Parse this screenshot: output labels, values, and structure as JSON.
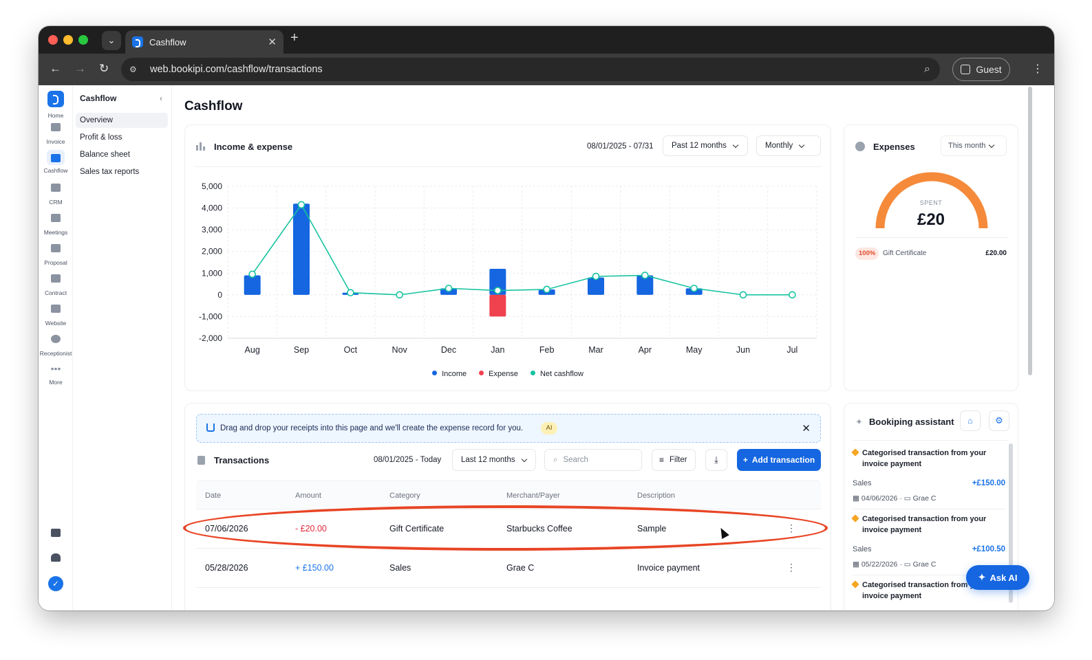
{
  "browser": {
    "tab_title": "Cashflow",
    "url": "web.bookipi.com/cashflow/transactions",
    "profile_label": "Guest"
  },
  "rail": {
    "items": [
      "Home",
      "Invoice",
      "Cashflow",
      "CRM",
      "Meetings",
      "Proposal",
      "Contract",
      "Website",
      "Receptionist",
      "More"
    ]
  },
  "subnav": {
    "title": "Cashflow",
    "items": [
      "Overview",
      "Profit & loss",
      "Balance sheet",
      "Sales tax reports"
    ]
  },
  "page": {
    "title": "Cashflow"
  },
  "income_expense": {
    "title": "Income & expense",
    "date_range": "08/01/2025 - 07/31",
    "period": "Past 12 months",
    "granularity": "Monthly",
    "legend": [
      "Income",
      "Expense",
      "Net cashflow"
    ]
  },
  "chart_data": {
    "type": "bar",
    "categories": [
      "Aug",
      "Sep",
      "Oct",
      "Nov",
      "Dec",
      "Jan",
      "Feb",
      "Mar",
      "Apr",
      "May",
      "Jun",
      "Jul"
    ],
    "yticks": [
      "5,000",
      "4,000",
      "3,000",
      "2,000",
      "1,000",
      "0",
      "-1,000",
      "-2,000"
    ],
    "ylim": [
      -2000,
      5000
    ],
    "grid": true,
    "legend_position": "bottom",
    "series": [
      {
        "name": "Income",
        "type": "bar",
        "color": "#1566e0",
        "values": [
          900,
          4200,
          100,
          0,
          300,
          1200,
          250,
          800,
          900,
          300,
          0,
          0
        ]
      },
      {
        "name": "Expense",
        "type": "bar",
        "color": "#f0414e",
        "values": [
          0,
          0,
          0,
          0,
          0,
          -1000,
          0,
          0,
          0,
          0,
          0,
          0
        ]
      },
      {
        "name": "Net cashflow",
        "type": "line",
        "color": "#17c3a0",
        "values": [
          950,
          4150,
          100,
          0,
          300,
          200,
          250,
          850,
          900,
          300,
          0,
          0
        ]
      }
    ]
  },
  "expenses": {
    "title": "Expenses",
    "period": "This month",
    "spent_label": "SPENT",
    "spent_value": "£20",
    "gauge_fraction": 1.0,
    "gauge_color": "#f58a3a",
    "breakdown": [
      {
        "percent": "100%",
        "name": "Gift Certificate",
        "amount": "£20.00"
      }
    ]
  },
  "banner": {
    "text": "Drag and drop your receipts into this page and we'll create the expense record for you.",
    "badge": "AI"
  },
  "transactions": {
    "title": "Transactions",
    "date_range": "08/01/2025 - Today",
    "period": "Last 12 months",
    "search_placeholder": "Search",
    "filter_label": "Filter",
    "add_label": "Add transaction",
    "columns": [
      "Date",
      "Amount",
      "Category",
      "Merchant/Payer",
      "Description"
    ],
    "rows": [
      {
        "date": "07/06/2026",
        "amount": "- £20.00",
        "category": "Gift Certificate",
        "merchant": "Starbucks Coffee",
        "description": "Sample"
      },
      {
        "date": "05/28/2026",
        "amount": "+ £150.00",
        "category": "Sales",
        "merchant": "Grae C",
        "description": "Invoice payment"
      }
    ]
  },
  "assistant": {
    "title": "Bookiping assistant",
    "items": [
      {
        "title": "Categorised transaction from your invoice payment",
        "category": "Sales",
        "amount": "+£150.00",
        "date": "04/06/2026",
        "payer": "Grae C"
      },
      {
        "title": "Categorised transaction from your invoice payment",
        "category": "Sales",
        "amount": "+£100.50",
        "date": "05/22/2026",
        "payer": "Grae C"
      },
      {
        "title": "Categorised transaction from your invoice payment",
        "category": "",
        "amount": "",
        "date": "",
        "payer": ""
      }
    ],
    "ask_ai": "Ask AI"
  }
}
